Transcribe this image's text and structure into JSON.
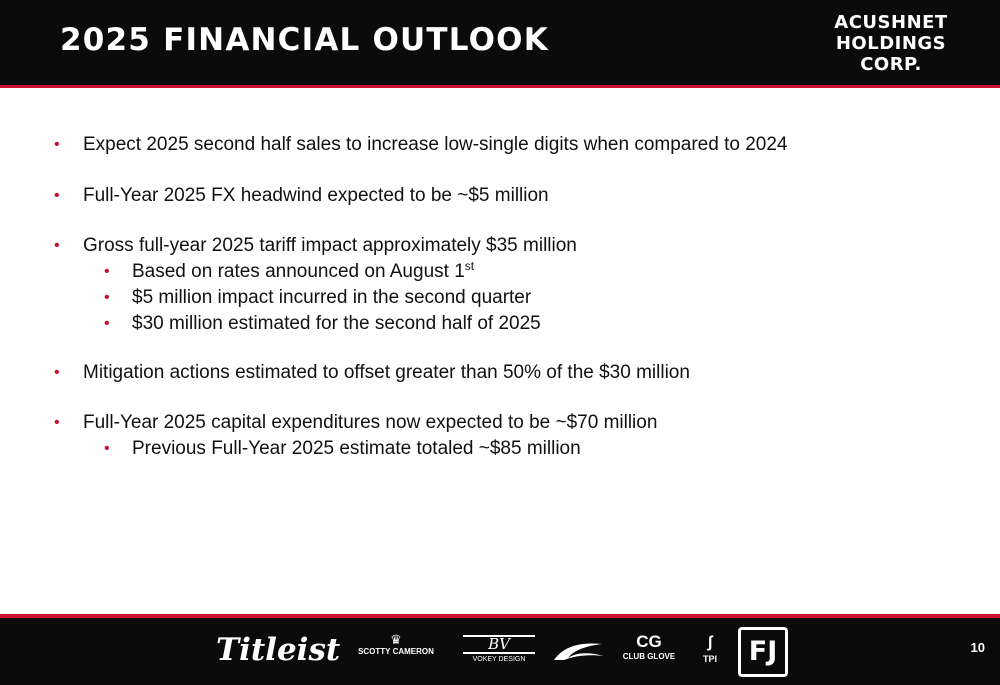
{
  "header": {
    "title": "2025 FINANCIAL OUTLOOK",
    "brand_lines": [
      "ACUSHNET",
      "HOLDINGS",
      "CORP."
    ]
  },
  "bullets": [
    {
      "text": "Expect 2025 second half sales to increase low-single digits when compared to 2024"
    },
    {
      "text": "Full-Year 2025 FX headwind expected to be ~$5 million"
    },
    {
      "text": "Gross full-year 2025 tariff impact approximately $35 million"
    },
    {
      "text": "Based on rates announced on August 1",
      "sup": "st"
    },
    {
      "text": "$5 million impact incurred in the second quarter"
    },
    {
      "text": "$30 million estimated for the second half of 2025"
    },
    {
      "text": "Mitigation actions estimated to offset greater than 50% of the $30 million"
    },
    {
      "text": "Full-Year 2025 capital expenditures now expected to be ~$70 million"
    },
    {
      "text": "Previous Full-Year 2025 estimate totaled ~$85 million"
    }
  ],
  "footer": {
    "logos": {
      "titleist": "Titleist",
      "scotty_cameron": "SCOTTY CAMERON",
      "vokey_mark": "BV",
      "vokey": "VOKEY DESIGN",
      "club_glove_mark": "CG",
      "club_glove": "CLUB GLOVE",
      "tpi": "TPI",
      "fj": "FJ"
    },
    "page_number": "10"
  },
  "colors": {
    "accent": "#c8102e",
    "band": "#0b0b0b"
  },
  "icons": {
    "bullet": "red-bullet-dot",
    "scotty_cameron": "crown-icon",
    "kjus": "swoosh-logo",
    "tpi": "golfer-icon"
  }
}
